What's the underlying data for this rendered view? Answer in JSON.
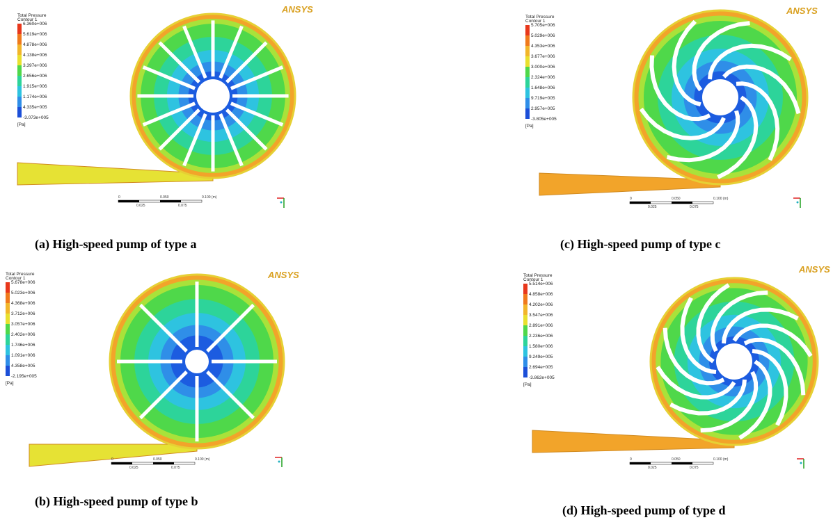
{
  "panels": [
    {
      "legend": {
        "title": "Total Pressure",
        "subtitle": "Contour 1",
        "labels": [
          "6.360e+006",
          "5.619e+006",
          "4.878e+006",
          "4.138e+006",
          "3.397e+006",
          "2.656e+006",
          "1.915e+006",
          "1.174e+006",
          "4.335e+005",
          "-3.073e+005"
        ],
        "unit": "[Pa]"
      },
      "logo": "ANSYS",
      "scale": {
        "top": [
          "0",
          "0.050",
          "0.100 (m)"
        ],
        "bottom": [
          "0.025",
          "0.075"
        ]
      },
      "caption": "(a) High-speed pump of type a"
    },
    {
      "legend": {
        "title": "Total Pressure",
        "subtitle": "Contour 1",
        "labels": [
          "5.678e+006",
          "5.023e+006",
          "4.368e+006",
          "3.712e+006",
          "3.057e+006",
          "2.402e+006",
          "1.746e+006",
          "1.091e+006",
          "4.358e+005",
          "-2.195e+005"
        ],
        "unit": "[Pa]"
      },
      "logo": "ANSYS",
      "scale": {
        "top": [
          "0",
          "0.050",
          "0.100 (m)"
        ],
        "bottom": [
          "0.025",
          "0.075"
        ]
      },
      "caption": "(b) High-speed pump of type b"
    },
    {
      "legend": {
        "title": "Total Pressure",
        "subtitle": "Contour 1",
        "labels": [
          "5.705e+006",
          "5.029e+006",
          "4.353e+006",
          "3.677e+006",
          "3.000e+006",
          "2.324e+006",
          "1.648e+006",
          "9.719e+005",
          "2.957e+005",
          "-3.805e+005"
        ],
        "unit": "[Pa]"
      },
      "logo": "ANSYS",
      "scale": {
        "top": [
          "0",
          "0.050",
          "0.100 (m)"
        ],
        "bottom": [
          "0.025",
          "0.075"
        ]
      },
      "caption": "(c) High-speed pump of type c"
    },
    {
      "legend": {
        "title": "Total Pressure",
        "subtitle": "Contour 1",
        "labels": [
          "5.514e+006",
          "4.858e+006",
          "4.202e+006",
          "3.547e+006",
          "2.891e+006",
          "2.236e+006",
          "1.580e+006",
          "9.249e+005",
          "2.694e+005",
          "-3.862e+005"
        ],
        "unit": "[Pa]"
      },
      "logo": "ANSYS",
      "scale": {
        "top": [
          "0",
          "0.050",
          "0.100 (m)"
        ],
        "bottom": [
          "0.025",
          "0.075"
        ]
      },
      "caption": "(d) High-speed pump of type d"
    }
  ]
}
